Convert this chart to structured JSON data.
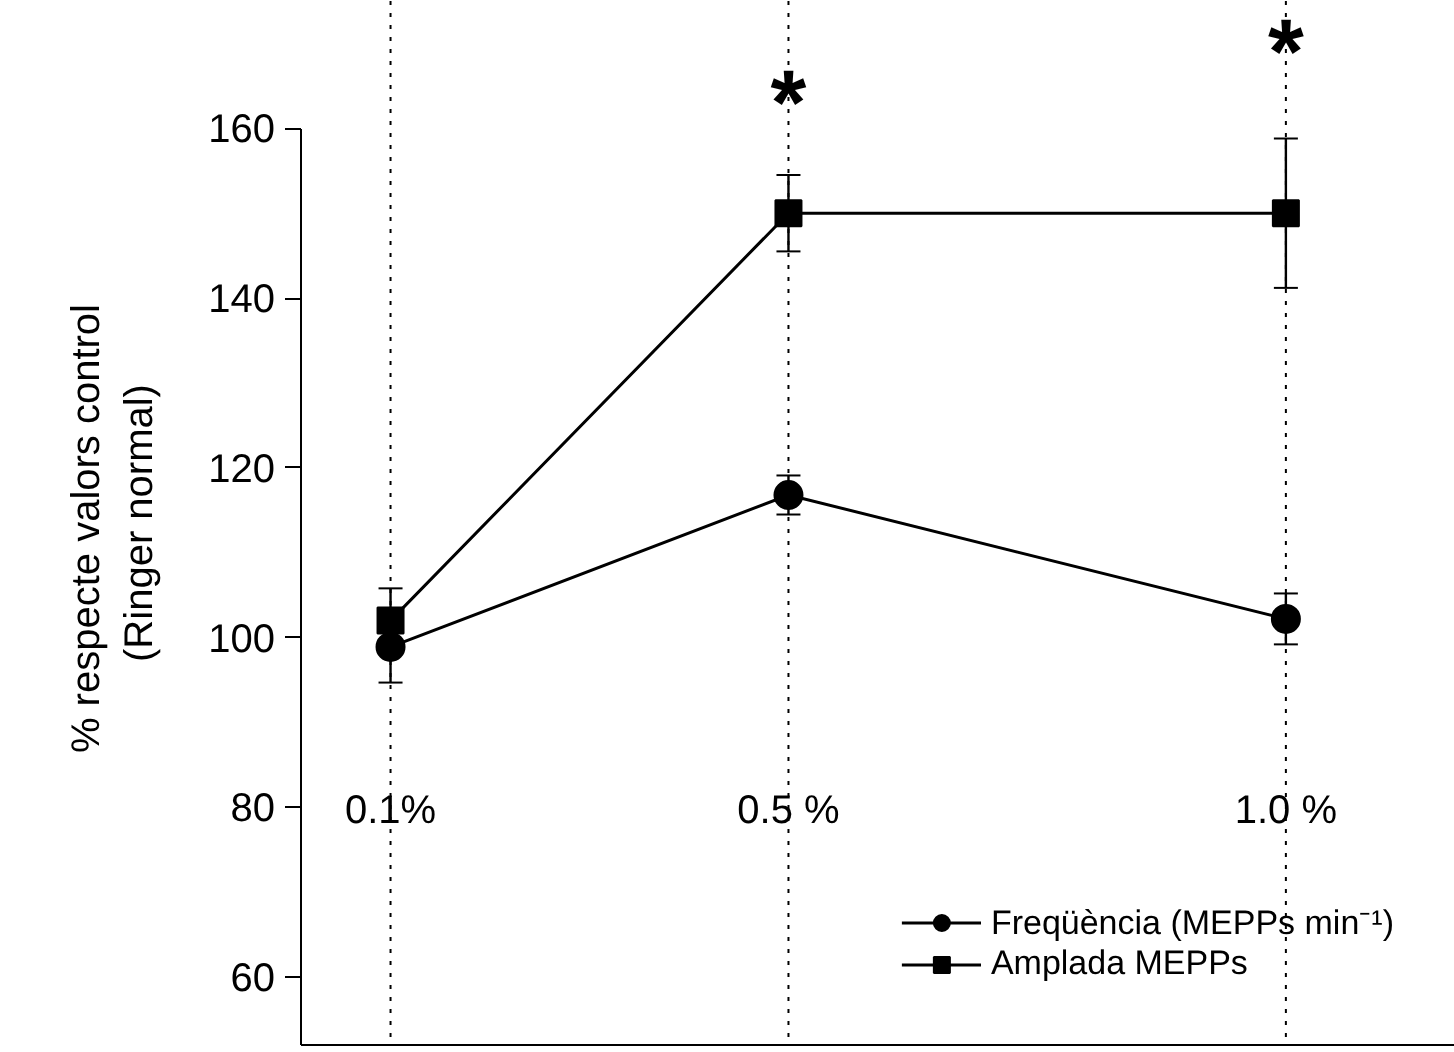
{
  "chart_data": {
    "type": "line",
    "ylabel": "%  respecte valors control\n(Ringer normal)",
    "x": [
      0.1,
      0.5,
      1.0
    ],
    "xlim": [
      0.01,
      1.17
    ],
    "xticks": [
      {
        "value": 0.1,
        "label": "0.1%"
      },
      {
        "value": 0.5,
        "label": "0.5 %"
      },
      {
        "value": 1.0,
        "label": "1.0 %"
      }
    ],
    "ylim": [
      52,
      175
    ],
    "yticks": [
      60,
      80,
      100,
      120,
      140,
      160
    ],
    "series": [
      {
        "name": "Freqüència (MEPPs min⁻¹)",
        "color": "#000000",
        "marker": "circle",
        "values": [
          98.9,
          116.8,
          102.2
        ],
        "errors": [
          4.2,
          2.3,
          3.0
        ]
      },
      {
        "name": "Amplada MEPPs",
        "color": "#000000",
        "marker": "square",
        "values": [
          102,
          150,
          150
        ],
        "errors": [
          3.8,
          4.5,
          8.8
        ]
      }
    ],
    "ref_lines": [
      {
        "axis": "x",
        "value": 0.1,
        "color": "#000000",
        "line_style": "dotted"
      },
      {
        "axis": "x",
        "value": 0.5,
        "color": "#000000",
        "line_style": "dotted"
      },
      {
        "axis": "x",
        "value": 1.0,
        "color": "#000000",
        "line_style": "dotted"
      }
    ],
    "annotations": [
      {
        "text": "*",
        "x": 0.5,
        "y": 165
      },
      {
        "text": "*",
        "x": 1.0,
        "y": 171
      }
    ],
    "grid": false,
    "legend": "bottom right",
    "line_style": "solid"
  }
}
